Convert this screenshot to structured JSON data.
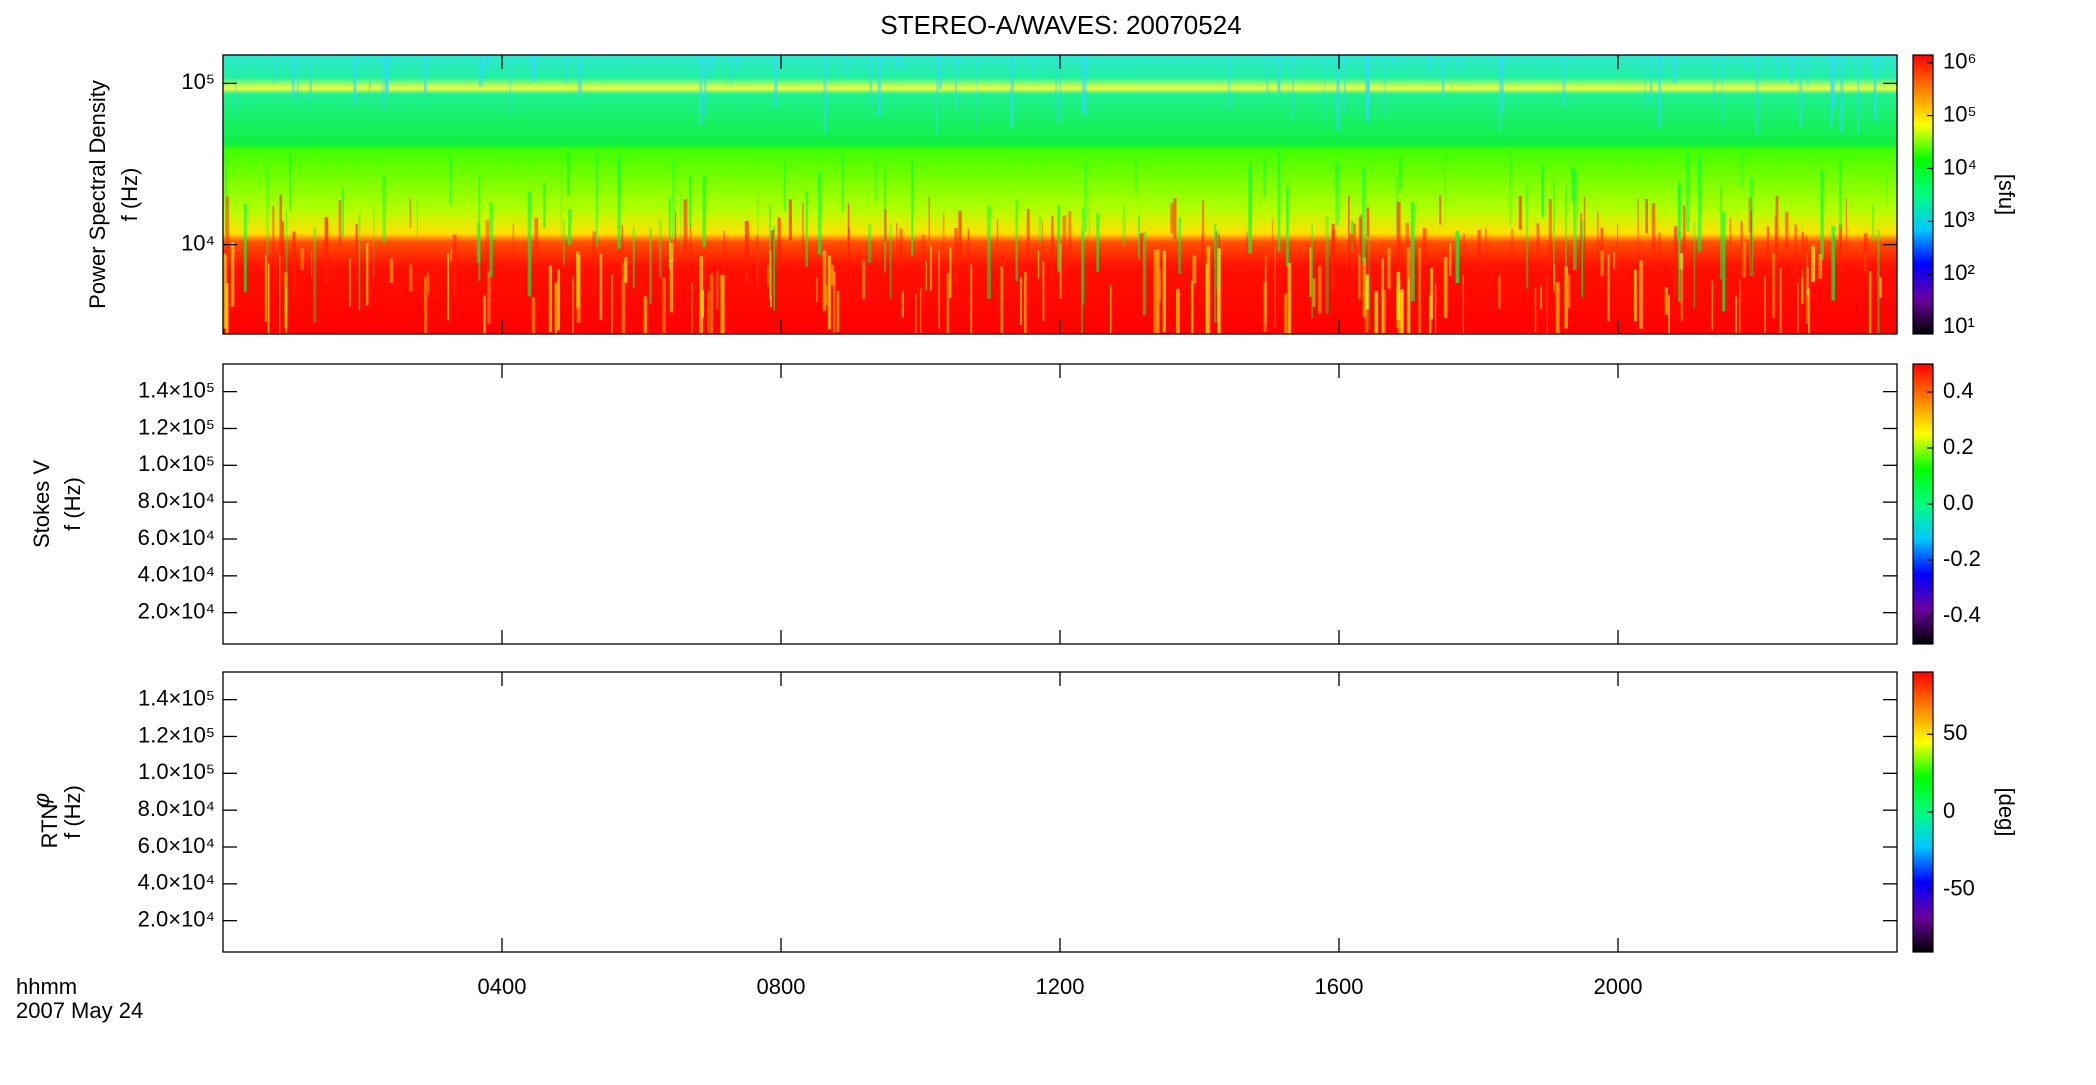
{
  "title": "STEREO-A/WAVES: 20070524",
  "x_label": [
    "hhmm",
    "2007 May 24"
  ],
  "chart_data": [
    {
      "type": "spectrogram",
      "ylabel": [
        "Power Spectral Density",
        "f (Hz)"
      ],
      "xlim": [
        0,
        24
      ],
      "ylim": [
        2790,
        150000
      ],
      "ylog": true,
      "yticks": [
        {
          "value": 10000,
          "label": "10⁴"
        },
        {
          "value": 100000,
          "label": "10⁵"
        }
      ],
      "colorbar": {
        "lim": [
          7.4,
          1400000
        ],
        "log": true,
        "label": "[sfu]",
        "ticks": [
          {
            "value": 10,
            "label": "10¹"
          },
          {
            "value": 100,
            "label": "10²"
          },
          {
            "value": 1000,
            "label": "10³"
          },
          {
            "value": 10000,
            "label": "10⁴"
          },
          {
            "value": 100000,
            "label": "10⁵"
          },
          {
            "value": 1000000,
            "label": "10⁶"
          }
        ],
        "colors": [
          "#000000",
          "#6a00a0",
          "#0000ff",
          "#00c8ff",
          "#00ff80",
          "#00ff00",
          "#ffff00",
          "#ff8000",
          "#ff0000"
        ]
      }
    },
    {
      "type": "spectrogram",
      "ylabel": [
        "Stokes V",
        "f (Hz)"
      ],
      "xlim": [
        0,
        24
      ],
      "ylim": [
        3000,
        155000
      ],
      "ylog": false,
      "yticks": [
        {
          "value": 20000,
          "label": "2.0×10⁴"
        },
        {
          "value": 40000,
          "label": "4.0×10⁴"
        },
        {
          "value": 60000,
          "label": "6.0×10⁴"
        },
        {
          "value": 80000,
          "label": "8.0×10⁴"
        },
        {
          "value": 100000,
          "label": "1.0×10⁵"
        },
        {
          "value": 120000,
          "label": "1.2×10⁵"
        },
        {
          "value": 140000,
          "label": "1.4×10⁵"
        }
      ],
      "colorbar": {
        "lim": [
          -0.5,
          0.5
        ],
        "log": false,
        "ticks": [
          -0.4,
          -0.2,
          {
            "value": 0,
            "label": "0.0"
          },
          0.2,
          0.4
        ],
        "colors": [
          "#000000",
          "#6a00a0",
          "#0000ff",
          "#00c8ff",
          "#00ff80",
          "#00ff00",
          "#ffff00",
          "#ff8000",
          "#ff0000"
        ]
      }
    },
    {
      "type": "spectrogram",
      "ylabel_symbol": "φ",
      "ylabel_subscript": "RTN",
      "ylabel": [
        "f (Hz)"
      ],
      "xlim": [
        0,
        24
      ],
      "ylim": [
        3000,
        155000
      ],
      "ylog": false,
      "yticks": [
        {
          "value": 20000,
          "label": "2.0×10⁴"
        },
        {
          "value": 40000,
          "label": "4.0×10⁴"
        },
        {
          "value": 60000,
          "label": "6.0×10⁴"
        },
        {
          "value": 80000,
          "label": "8.0×10⁴"
        },
        {
          "value": 100000,
          "label": "1.0×10⁵"
        },
        {
          "value": 120000,
          "label": "1.2×10⁵"
        },
        {
          "value": 140000,
          "label": "1.4×10⁵"
        }
      ],
      "xticks": [
        {
          "value": 4,
          "label": "0400"
        },
        {
          "value": 8,
          "label": "0800"
        },
        {
          "value": 12,
          "label": "1200"
        },
        {
          "value": 16,
          "label": "1600"
        },
        {
          "value": 20,
          "label": "2000"
        }
      ],
      "colorbar": {
        "lim": [
          -90,
          90
        ],
        "log": false,
        "label": "[deg]",
        "ticks": [
          -50,
          0,
          50
        ],
        "colors": [
          "#000000",
          "#6a00a0",
          "#0000ff",
          "#00c8ff",
          "#00ff80",
          "#00ff00",
          "#ffff00",
          "#ff8000",
          "#ff0000"
        ]
      }
    }
  ]
}
